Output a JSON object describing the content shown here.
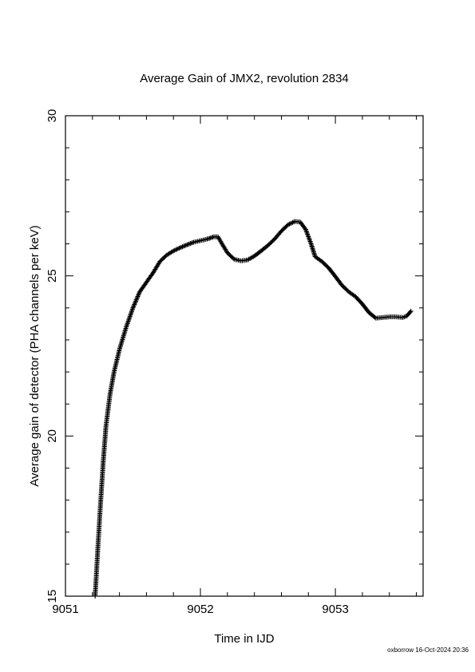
{
  "chart_data": {
    "type": "scatter",
    "title": "Average Gain of JMX2, revolution 2834",
    "xlabel": "Time in IJD",
    "ylabel": "Average gain of detector (PHA channels per keV)",
    "xlim": [
      9051,
      9053.65
    ],
    "ylim": [
      15,
      30
    ],
    "xticks": [
      "9051",
      "9052",
      "9053"
    ],
    "yticks": [
      "15",
      "20",
      "25",
      "30"
    ],
    "marker": "plus",
    "series_color": "#000000",
    "grid": false,
    "points": [
      [
        9051.22,
        15.0
      ],
      [
        9051.24,
        16.5
      ],
      [
        9051.26,
        17.9
      ],
      [
        9051.28,
        19.2
      ],
      [
        9051.3,
        20.3
      ],
      [
        9051.33,
        21.3
      ],
      [
        9051.36,
        22.0
      ],
      [
        9051.4,
        22.7
      ],
      [
        9051.45,
        23.4
      ],
      [
        9051.5,
        24.0
      ],
      [
        9051.55,
        24.5
      ],
      [
        9051.6,
        24.8
      ],
      [
        9051.65,
        25.1
      ],
      [
        9051.7,
        25.45
      ],
      [
        9051.75,
        25.65
      ],
      [
        9051.8,
        25.78
      ],
      [
        9051.85,
        25.88
      ],
      [
        9051.9,
        25.97
      ],
      [
        9051.95,
        26.05
      ],
      [
        9052.0,
        26.1
      ],
      [
        9052.05,
        26.15
      ],
      [
        9052.1,
        26.22
      ],
      [
        9052.13,
        26.22
      ],
      [
        9052.16,
        26.0
      ],
      [
        9052.2,
        25.72
      ],
      [
        9052.25,
        25.52
      ],
      [
        9052.3,
        25.47
      ],
      [
        9052.35,
        25.5
      ],
      [
        9052.4,
        25.62
      ],
      [
        9052.45,
        25.78
      ],
      [
        9052.5,
        25.95
      ],
      [
        9052.55,
        26.15
      ],
      [
        9052.6,
        26.4
      ],
      [
        9052.65,
        26.6
      ],
      [
        9052.7,
        26.7
      ],
      [
        9052.74,
        26.68
      ],
      [
        9052.78,
        26.45
      ],
      [
        9052.82,
        26.0
      ],
      [
        9052.85,
        25.6
      ],
      [
        9052.9,
        25.45
      ],
      [
        9052.95,
        25.25
      ],
      [
        9053.0,
        24.98
      ],
      [
        9053.05,
        24.7
      ],
      [
        9053.1,
        24.5
      ],
      [
        9053.15,
        24.35
      ],
      [
        9053.2,
        24.12
      ],
      [
        9053.25,
        23.85
      ],
      [
        9053.3,
        23.68
      ],
      [
        9053.35,
        23.7
      ],
      [
        9053.4,
        23.72
      ],
      [
        9053.45,
        23.72
      ],
      [
        9053.5,
        23.7
      ],
      [
        9053.53,
        23.75
      ],
      [
        9053.56,
        23.9
      ]
    ]
  },
  "footer": "oxborrow 16-Oct-2024 20:36"
}
